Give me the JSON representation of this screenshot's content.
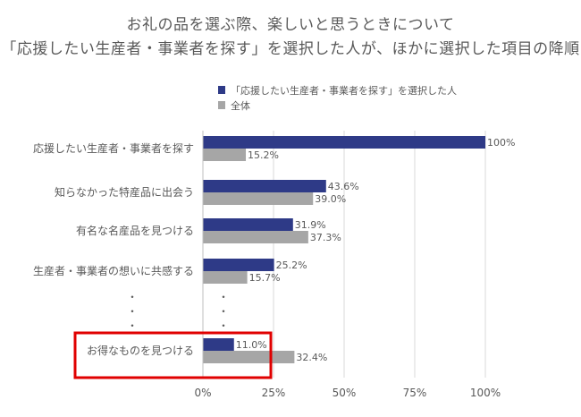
{
  "chart_data": {
    "type": "bar",
    "orientation": "horizontal",
    "title": [
      "お礼の品を選ぶ際、楽しいと思うときについて",
      "「応援したい生産者・事業者を探す」を選択した人が、ほかに選択した項目の降順"
    ],
    "categories": [
      "応援したい生産者・事業者を探す",
      "知らなかった特産品に出会う",
      "有名な名産品を見つける",
      "生産者・事業者の想いに共感する",
      "お得なものを見つける"
    ],
    "series": [
      {
        "name": "「応援したい生産者・事業者を探す」を選択した人",
        "color": "#2e3a87",
        "values": [
          100,
          43.6,
          31.9,
          25.2,
          11.0
        ],
        "labels": [
          "100%",
          "43.6%",
          "31.9%",
          "25.2%",
          "11.0%"
        ]
      },
      {
        "name": "全体",
        "color": "#a6a6a6",
        "values": [
          15.2,
          39.0,
          37.3,
          15.7,
          32.4
        ],
        "labels": [
          "15.2%",
          "39.0%",
          "37.3%",
          "15.7%",
          "32.4%"
        ]
      }
    ],
    "xlim": [
      0,
      100
    ],
    "xticks": [
      "0%",
      "25%",
      "50%",
      "75%",
      "100%"
    ],
    "ellipsis": "・",
    "highlighted_category": "お得なものを見つける",
    "highlight_color": "#e00000",
    "legend_position": "top"
  }
}
